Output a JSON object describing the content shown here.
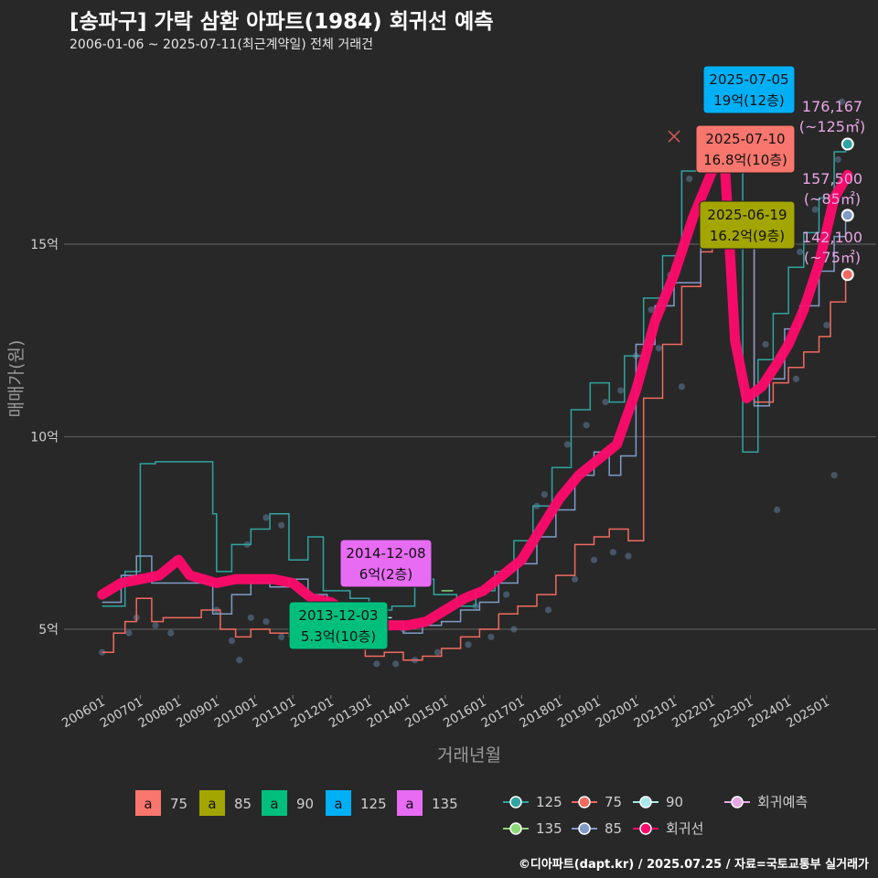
{
  "title": "[송파구] 가락 삼환 아파트(1984) 회귀선 예측",
  "subtitle": "2006-01-06 ~ 2025-07-11(최근계약일) 전체 거래건",
  "credit": "©디아파트(dapt.kr) / 2025.07.25 / 자료=국토교통부 실거래가",
  "chart_data": {
    "type": "line",
    "xlabel": "거래년월",
    "ylabel": "매매가(원)",
    "ylim": [
      3.4,
      19.6
    ],
    "grid": true,
    "x_ticks": [
      "200601",
      "200701",
      "200801",
      "200901",
      "201001",
      "201101",
      "201201",
      "201301",
      "201401",
      "201501",
      "201601",
      "201701",
      "201801",
      "201901",
      "202001",
      "202101",
      "202201",
      "202301",
      "202401",
      "202501"
    ],
    "y_ticks": [
      {
        "value": 5,
        "label": "5억"
      },
      {
        "value": 10,
        "label": "10억"
      },
      {
        "value": 15,
        "label": "15억"
      }
    ],
    "colors": {
      "75": "#F8766D",
      "85": "#A3A500",
      "90": "#00BF7D",
      "125": "#00B0F6",
      "135": "#E76BF3",
      "line125": "#2FA4A0",
      "line85": "#7F9CC8",
      "line75": "#F06A5F",
      "line90": "#A8E8E8",
      "line135": "#8ED77A",
      "regression": "#FF0A6C",
      "forecast": "#E8A6E6"
    },
    "series": [
      {
        "name": "125",
        "color": "#2FA4A0",
        "points": [
          [
            2006.0,
            5.6
          ],
          [
            2006.6,
            6.5
          ],
          [
            2007.0,
            9.3
          ],
          [
            2007.4,
            9.35
          ],
          [
            2008.9,
            8.0
          ],
          [
            2009.0,
            6.5
          ],
          [
            2009.4,
            7.2
          ],
          [
            2009.9,
            7.6
          ],
          [
            2010.4,
            8.0
          ],
          [
            2010.9,
            6.8
          ],
          [
            2011.4,
            7.4
          ],
          [
            2011.8,
            6.0
          ],
          [
            2012.5,
            5.8
          ],
          [
            2013.0,
            5.5
          ],
          [
            2013.6,
            5.6
          ],
          [
            2014.2,
            6.3
          ],
          [
            2014.7,
            5.9
          ],
          [
            2015.3,
            5.6
          ],
          [
            2015.8,
            6.0
          ],
          [
            2016.3,
            6.5
          ],
          [
            2016.8,
            7.3
          ],
          [
            2017.3,
            8.2
          ],
          [
            2017.8,
            9.2
          ],
          [
            2018.3,
            10.7
          ],
          [
            2018.8,
            11.4
          ],
          [
            2019.3,
            10.9
          ],
          [
            2019.7,
            12.1
          ],
          [
            2020.2,
            13.6
          ],
          [
            2020.7,
            14.7
          ],
          [
            2021.2,
            16.9
          ],
          [
            2021.7,
            17.4
          ],
          [
            2022.0,
            17.8
          ],
          [
            2022.3,
            17.5
          ],
          [
            2022.8,
            9.6
          ],
          [
            2023.2,
            12.0
          ],
          [
            2023.6,
            13.2
          ],
          [
            2024.0,
            14.4
          ],
          [
            2024.4,
            15.3
          ],
          [
            2024.8,
            16.2
          ],
          [
            2025.2,
            17.4
          ],
          [
            2025.5,
            17.6
          ]
        ]
      },
      {
        "name": "75",
        "color": "#F06A5F",
        "points": [
          [
            2006.0,
            4.4
          ],
          [
            2006.3,
            4.9
          ],
          [
            2006.6,
            5.2
          ],
          [
            2006.9,
            5.8
          ],
          [
            2007.3,
            5.2
          ],
          [
            2007.6,
            5.3
          ],
          [
            2008.6,
            5.5
          ],
          [
            2009.1,
            5.0
          ],
          [
            2009.5,
            4.8
          ],
          [
            2009.9,
            5.0
          ],
          [
            2010.4,
            4.9
          ],
          [
            2010.9,
            4.8
          ],
          [
            2011.4,
            5.0
          ],
          [
            2011.9,
            5.2
          ],
          [
            2012.4,
            4.6
          ],
          [
            2012.9,
            4.3
          ],
          [
            2013.4,
            4.4
          ],
          [
            2013.9,
            4.2
          ],
          [
            2014.4,
            4.3
          ],
          [
            2014.9,
            4.5
          ],
          [
            2015.4,
            4.8
          ],
          [
            2015.9,
            5.0
          ],
          [
            2016.4,
            5.4
          ],
          [
            2016.9,
            5.6
          ],
          [
            2017.4,
            5.9
          ],
          [
            2017.9,
            6.4
          ],
          [
            2018.4,
            7.2
          ],
          [
            2018.9,
            7.4
          ],
          [
            2019.3,
            7.6
          ],
          [
            2019.8,
            7.3
          ],
          [
            2020.2,
            11.0
          ],
          [
            2020.7,
            12.4
          ],
          [
            2021.2,
            13.9
          ],
          [
            2021.7,
            14.8
          ],
          [
            2022.0,
            14.9
          ],
          [
            2023.1,
            10.9
          ],
          [
            2023.6,
            11.4
          ],
          [
            2024.0,
            11.8
          ],
          [
            2024.4,
            12.2
          ],
          [
            2024.8,
            12.6
          ],
          [
            2025.1,
            13.5
          ],
          [
            2025.5,
            14.2
          ]
        ]
      },
      {
        "name": "85",
        "color": "#7F9CC8",
        "points": [
          [
            2006.0,
            5.7
          ],
          [
            2006.5,
            6.4
          ],
          [
            2006.9,
            6.9
          ],
          [
            2007.3,
            6.2
          ],
          [
            2008.4,
            6.2
          ],
          [
            2008.9,
            5.4
          ],
          [
            2009.4,
            5.9
          ],
          [
            2009.9,
            6.2
          ],
          [
            2010.4,
            6.1
          ],
          [
            2010.9,
            6.3
          ],
          [
            2011.4,
            5.9
          ],
          [
            2011.9,
            5.6
          ],
          [
            2012.4,
            5.3
          ],
          [
            2012.9,
            5.0
          ],
          [
            2013.4,
            5.2
          ],
          [
            2013.9,
            4.9
          ],
          [
            2014.4,
            5.1
          ],
          [
            2014.9,
            5.2
          ],
          [
            2015.4,
            5.5
          ],
          [
            2015.9,
            5.7
          ],
          [
            2016.4,
            6.2
          ],
          [
            2016.9,
            6.7
          ],
          [
            2017.4,
            7.4
          ],
          [
            2017.9,
            8.1
          ],
          [
            2018.4,
            9.0
          ],
          [
            2018.9,
            9.6
          ],
          [
            2019.3,
            9.0
          ],
          [
            2019.6,
            9.5
          ],
          [
            2020.0,
            12.4
          ],
          [
            2020.5,
            13.4
          ],
          [
            2021.0,
            14.0
          ],
          [
            2021.7,
            15.7
          ],
          [
            2022.1,
            15.7
          ],
          [
            2023.1,
            10.8
          ],
          [
            2023.5,
            11.5
          ],
          [
            2023.9,
            12.8
          ],
          [
            2024.3,
            13.4
          ],
          [
            2024.8,
            14.3
          ],
          [
            2025.2,
            15.2
          ],
          [
            2025.5,
            15.7
          ]
        ]
      },
      {
        "name": "90",
        "color": "#A8E8E8",
        "points": [
          [
            2013.5,
            5.3
          ],
          [
            2013.6,
            5.3
          ]
        ]
      },
      {
        "name": "135",
        "color": "#8ED77A",
        "points": [
          [
            2014.9,
            6.0
          ],
          [
            2015.2,
            6.0
          ]
        ]
      },
      {
        "name": "회귀선",
        "color": "#FF0A6C",
        "points": [
          [
            2006.0,
            5.9
          ],
          [
            2006.5,
            6.2
          ],
          [
            2007.0,
            6.3
          ],
          [
            2007.5,
            6.4
          ],
          [
            2008.0,
            6.8
          ],
          [
            2008.3,
            6.4
          ],
          [
            2009.0,
            6.2
          ],
          [
            2009.5,
            6.3
          ],
          [
            2010.0,
            6.3
          ],
          [
            2010.5,
            6.3
          ],
          [
            2011.0,
            6.2
          ],
          [
            2011.5,
            5.8
          ],
          [
            2012.0,
            5.7
          ],
          [
            2012.5,
            5.4
          ],
          [
            2013.0,
            5.2
          ],
          [
            2013.5,
            5.1
          ],
          [
            2014.0,
            5.1
          ],
          [
            2014.5,
            5.2
          ],
          [
            2015.0,
            5.5
          ],
          [
            2015.5,
            5.8
          ],
          [
            2016.0,
            6.0
          ],
          [
            2016.5,
            6.4
          ],
          [
            2017.0,
            6.8
          ],
          [
            2017.5,
            7.6
          ],
          [
            2018.0,
            8.4
          ],
          [
            2018.5,
            9.0
          ],
          [
            2019.0,
            9.4
          ],
          [
            2019.5,
            9.8
          ],
          [
            2020.0,
            11.2
          ],
          [
            2020.5,
            13.0
          ],
          [
            2021.0,
            14.2
          ],
          [
            2021.5,
            15.7
          ],
          [
            2022.0,
            16.9
          ],
          [
            2022.3,
            17.6
          ],
          [
            2022.6,
            12.5
          ],
          [
            2022.9,
            11.0
          ],
          [
            2023.3,
            11.3
          ],
          [
            2023.7,
            11.9
          ],
          [
            2024.0,
            12.4
          ],
          [
            2024.4,
            13.3
          ],
          [
            2024.8,
            14.5
          ],
          [
            2025.2,
            16.2
          ],
          [
            2025.55,
            16.8
          ]
        ]
      }
    ],
    "scatter_points": [
      [
        2006.0,
        4.4
      ],
      [
        2006.7,
        4.9
      ],
      [
        2006.9,
        5.3
      ],
      [
        2007.4,
        5.1
      ],
      [
        2007.8,
        4.9
      ],
      [
        2009.4,
        4.7
      ],
      [
        2009.6,
        4.2
      ],
      [
        2009.9,
        5.3
      ],
      [
        2010.3,
        5.2
      ],
      [
        2010.7,
        4.8
      ],
      [
        2013.2,
        4.1
      ],
      [
        2013.7,
        4.1
      ],
      [
        2014.2,
        4.2
      ],
      [
        2014.8,
        4.4
      ],
      [
        2015.6,
        4.6
      ],
      [
        2016.2,
        4.8
      ],
      [
        2016.8,
        5.0
      ],
      [
        2017.7,
        5.5
      ],
      [
        2018.4,
        6.3
      ],
      [
        2018.9,
        6.8
      ],
      [
        2019.4,
        7.0
      ],
      [
        2019.8,
        6.9
      ],
      [
        2020.6,
        12.3
      ],
      [
        2021.2,
        11.3
      ],
      [
        2022.4,
        16.0
      ],
      [
        2024.2,
        11.5
      ],
      [
        2025.0,
        12.9
      ],
      [
        2025.2,
        9.0
      ],
      [
        2009.8,
        7.2
      ],
      [
        2010.3,
        7.9
      ],
      [
        2010.7,
        7.7
      ],
      [
        2017.4,
        8.2
      ],
      [
        2017.6,
        8.5
      ],
      [
        2018.2,
        9.8
      ],
      [
        2018.7,
        10.3
      ],
      [
        2019.2,
        10.9
      ],
      [
        2019.6,
        11.2
      ],
      [
        2020.0,
        12.1
      ],
      [
        2020.4,
        13.3
      ],
      [
        2020.9,
        14.2
      ],
      [
        2021.4,
        16.7
      ],
      [
        2021.8,
        17.3
      ],
      [
        2023.4,
        12.4
      ],
      [
        2023.8,
        12.1
      ],
      [
        2024.3,
        14.8
      ],
      [
        2024.7,
        15.9
      ],
      [
        2025.3,
        17.2
      ],
      [
        2025.4,
        18.7
      ],
      [
        2023.7,
        8.1
      ],
      [
        2015.8,
        5.6
      ],
      [
        2016.6,
        5.9
      ],
      [
        2009.0,
        5.5
      ],
      [
        2012.6,
        5.3
      ],
      [
        2013.9,
        5.0
      ]
    ],
    "forecast_points": [
      {
        "series": "125",
        "x": 2025.55,
        "y": 17.6
      },
      {
        "series": "85",
        "x": 2025.55,
        "y": 15.75
      },
      {
        "series": "75",
        "x": 2025.55,
        "y": 14.21
      }
    ],
    "annotations": [
      {
        "date": "2025-07-05",
        "price": "19억(12층)",
        "series": "125",
        "x": 2025.51,
        "y": 19.0
      },
      {
        "date": "2025-07-10",
        "price": "16.8억(10층)",
        "series": "75",
        "x": 2025.52,
        "y": 16.8
      },
      {
        "date": "2025-06-19",
        "price": "16.2억(9층)",
        "series": "85",
        "x": 2025.46,
        "y": 16.2
      },
      {
        "date": "2014-12-08",
        "price": "6억(2층)",
        "series": "135",
        "x": 2014.93,
        "y": 6.0
      },
      {
        "date": "2013-12-03",
        "price": "5.3억(10층)",
        "series": "90",
        "x": 2013.92,
        "y": 5.3
      }
    ],
    "forecast_labels": [
      {
        "value": "176,167",
        "area": "(~125㎡)"
      },
      {
        "value": "157,500",
        "area": "(~85㎡)"
      },
      {
        "value": "142,100",
        "area": "(~75㎡)"
      }
    ],
    "legend_fill": [
      {
        "label": "75",
        "color": "#F8766D"
      },
      {
        "label": "85",
        "color": "#A3A500"
      },
      {
        "label": "90",
        "color": "#00BF7D"
      },
      {
        "label": "125",
        "color": "#00B0F6"
      },
      {
        "label": "135",
        "color": "#E76BF3"
      }
    ],
    "legend_fill_key": "a",
    "legend_lines": [
      {
        "label": "125",
        "color": "#2FA4A0"
      },
      {
        "label": "75",
        "color": "#F06A5F"
      },
      {
        "label": "90",
        "color": "#A8E8E8"
      },
      {
        "label": "회귀예측",
        "color": "#E8A6E6"
      },
      {
        "label": "135",
        "color": "#8ED77A"
      },
      {
        "label": "85",
        "color": "#7F9CC8"
      },
      {
        "label": "회귀선",
        "color": "#FF0A6C"
      }
    ]
  }
}
